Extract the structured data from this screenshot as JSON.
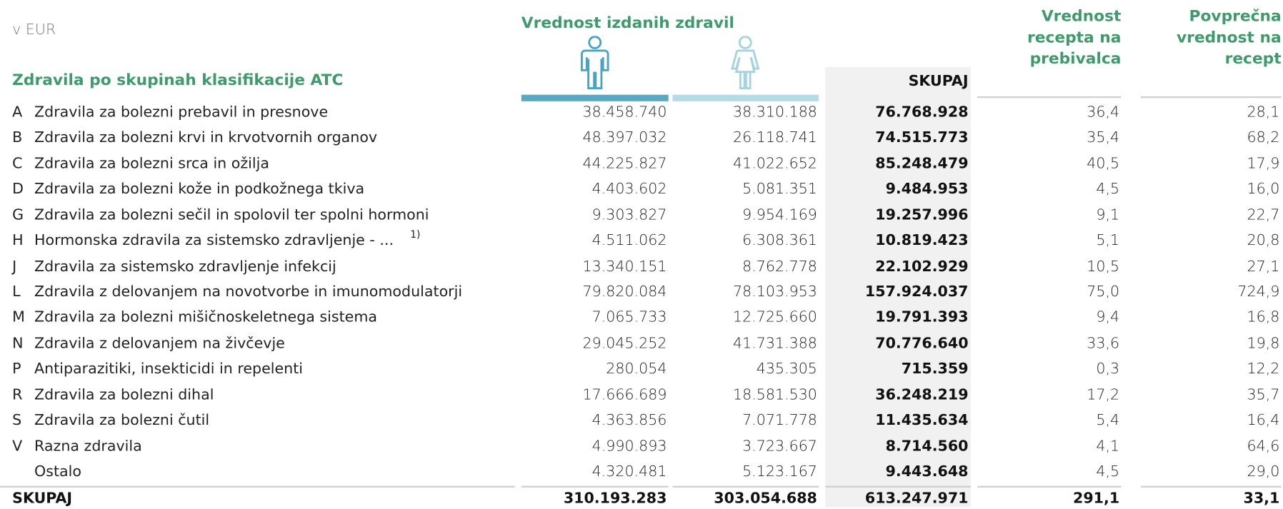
{
  "unit": "v EUR",
  "group_title": "Vrednost izdanih zdravil",
  "row_header": "Zdravila po skupinah klasifikacije ATC",
  "total_header": "SKUPAJ",
  "per_capita_header": [
    "Vrednost",
    "recepta na",
    "prebivalca"
  ],
  "average_header": [
    "Povprečna",
    "vrednost na",
    "recept"
  ],
  "rows": [
    {
      "code": "A",
      "name": "Zdravila za bolezni prebavil in presnove",
      "values": [
        "38.458.740",
        "38.310.188",
        "76.768.928",
        "36,4",
        "28,1"
      ]
    },
    {
      "code": "B",
      "name": "Zdravila za bolezni krvi in krvotvornih organov",
      "values": [
        "48.397.032",
        "26.118.741",
        "74.515.773",
        "35,4",
        "68,2"
      ]
    },
    {
      "code": "C",
      "name": "Zdravila za bolezni srca in ožilja",
      "values": [
        "44.225.827",
        "41.022.652",
        "85.248.479",
        "40,5",
        "17,9"
      ]
    },
    {
      "code": "D",
      "name": "Zdravila za bolezni kože in podkožnega tkiva",
      "values": [
        "4.403.602",
        "5.081.351",
        "9.484.953",
        "4,5",
        "16,0"
      ]
    },
    {
      "code": "G",
      "name": "Zdravila za bolezni sečil in spolovil ter spolni hormoni",
      "values": [
        "9.303.827",
        "9.954.169",
        "19.257.996",
        "9,1",
        "22,7"
      ]
    },
    {
      "code": "H",
      "name": "Hormonska zdravila za sistemsko zdravljenje - ...",
      "note": "1)",
      "values": [
        "4.511.062",
        "6.308.361",
        "10.819.423",
        "5,1",
        "20,8"
      ]
    },
    {
      "code": "J",
      "name": "Zdravila za sistemsko zdravljenje infekcij",
      "values": [
        "13.340.151",
        "8.762.778",
        "22.102.929",
        "10,5",
        "27,1"
      ]
    },
    {
      "code": "L",
      "name": "Zdravila z delovanjem na novotvorbe in imunomodulatorji",
      "values": [
        "79.820.084",
        "78.103.953",
        "157.924.037",
        "75,0",
        "724,9"
      ]
    },
    {
      "code": "M",
      "name": "Zdravila za bolezni mišičnoskeletnega sistema",
      "values": [
        "7.065.733",
        "12.725.660",
        "19.791.393",
        "9,4",
        "16,8"
      ]
    },
    {
      "code": "N",
      "name": "Zdravila z delovanjem na živčevje",
      "values": [
        "29.045.252",
        "41.731.388",
        "70.776.640",
        "33,6",
        "19,8"
      ]
    },
    {
      "code": "P",
      "name": "Antiparazitiki, insekticidi in repelenti",
      "values": [
        "280.054",
        "435.305",
        "715.359",
        "0,3",
        "12,2"
      ]
    },
    {
      "code": "R",
      "name": "Zdravila za bolezni dihal",
      "values": [
        "17.666.689",
        "18.581.530",
        "36.248.219",
        "17,2",
        "35,7"
      ]
    },
    {
      "code": "S",
      "name": "Zdravila za bolezni čutil",
      "values": [
        "4.363.856",
        "7.071.778",
        "11.435.634",
        "5,4",
        "16,4"
      ]
    },
    {
      "code": "V",
      "name": "Razna zdravila",
      "values": [
        "4.990.893",
        "3.723.667",
        "8.714.560",
        "4,1",
        "64,6"
      ]
    },
    {
      "name": "Ostalo",
      "values": [
        "4.320.481",
        "5.123.167",
        "9.443.648",
        "4,5",
        "29,0"
      ]
    }
  ],
  "total": {
    "name": "SKUPAJ",
    "values": [
      "310.193.283",
      "303.054.688",
      "613.247.971",
      "291,1",
      "33,1"
    ]
  }
}
